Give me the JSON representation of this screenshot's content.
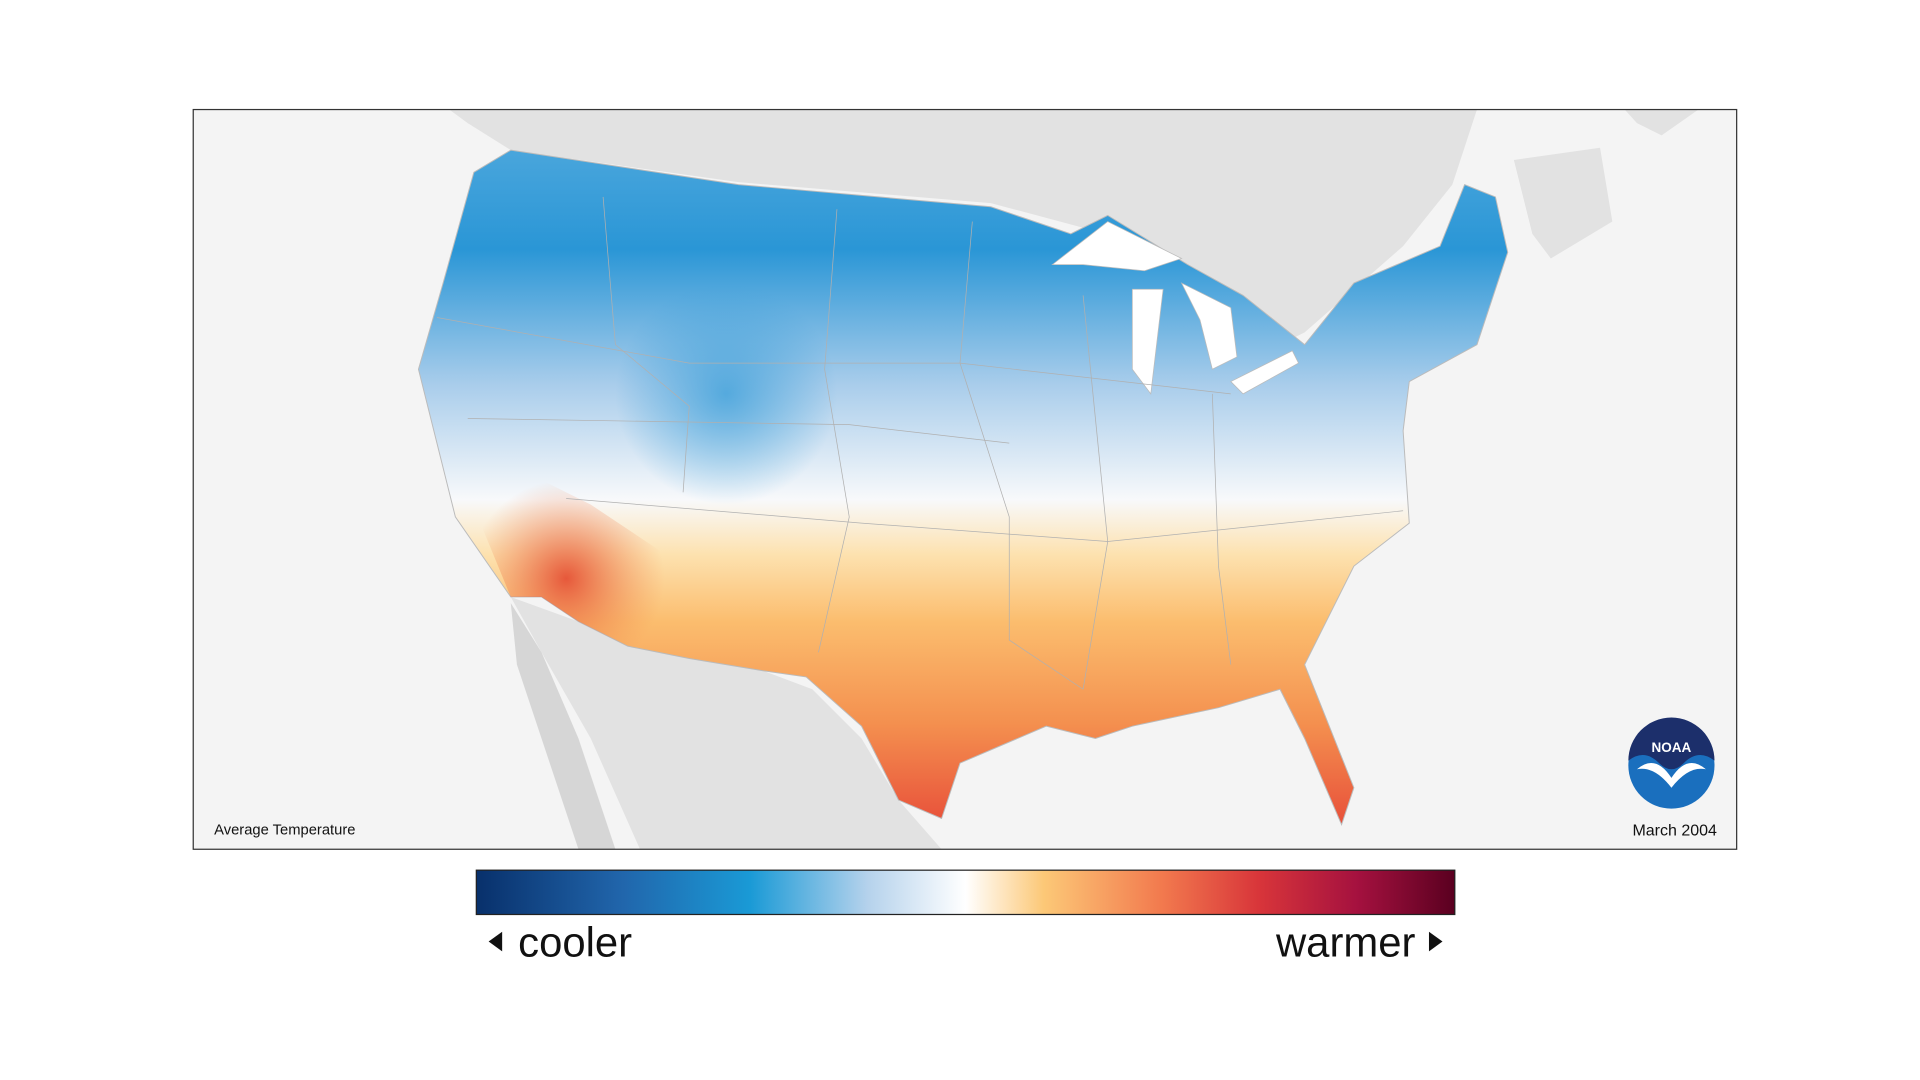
{
  "map": {
    "caption": "Average Temperature",
    "date": "March 2004",
    "logo": "NOAA",
    "legend": {
      "low": "cooler",
      "high": "warmer"
    }
  }
}
